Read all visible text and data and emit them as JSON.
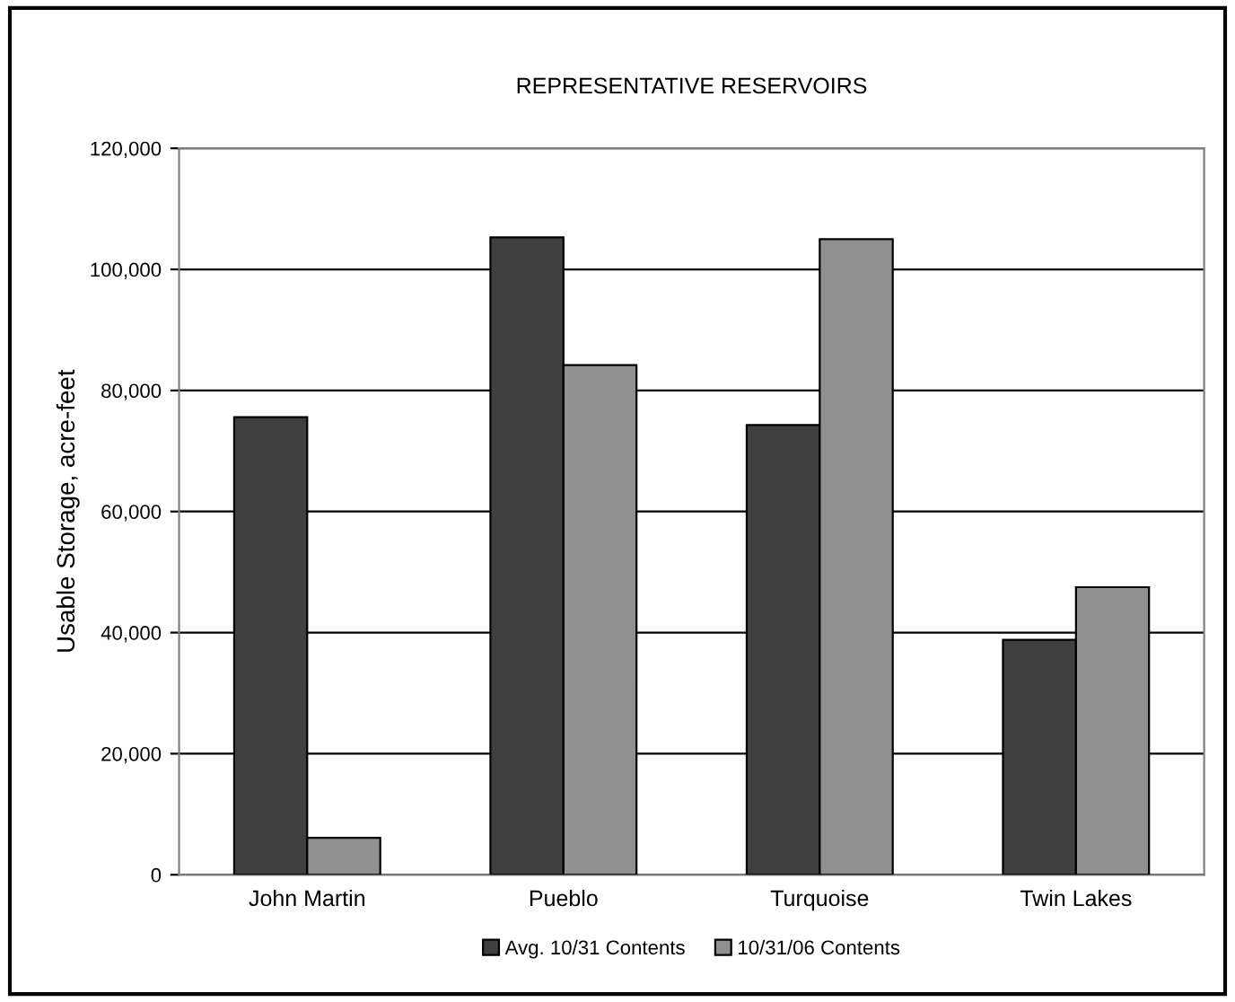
{
  "chart_data": {
    "type": "bar",
    "title": "REPRESENTATIVE RESERVOIRS",
    "ylabel": "Usable Storage, acre-feet",
    "categories": [
      "John Martin",
      "Pueblo",
      "Turquoise",
      "Twin Lakes"
    ],
    "series": [
      {
        "name": "Avg. 10/31 Contents",
        "color": "#404040",
        "values": [
          75600,
          105300,
          74300,
          38800
        ]
      },
      {
        "name": "10/31/06 Contents",
        "color": "#909090",
        "values": [
          6100,
          84200,
          105000,
          47500
        ]
      }
    ],
    "ylim": [
      0,
      120000
    ],
    "yticks": [
      {
        "value": 0,
        "label": "0"
      },
      {
        "value": 20000,
        "label": "20,000"
      },
      {
        "value": 40000,
        "label": "40,000"
      },
      {
        "value": 60000,
        "label": "60,000"
      },
      {
        "value": 80000,
        "label": "80,000"
      },
      {
        "value": 100000,
        "label": "100,000"
      },
      {
        "value": 120000,
        "label": "120,000"
      }
    ],
    "grid": "y",
    "legend": "bottom"
  }
}
